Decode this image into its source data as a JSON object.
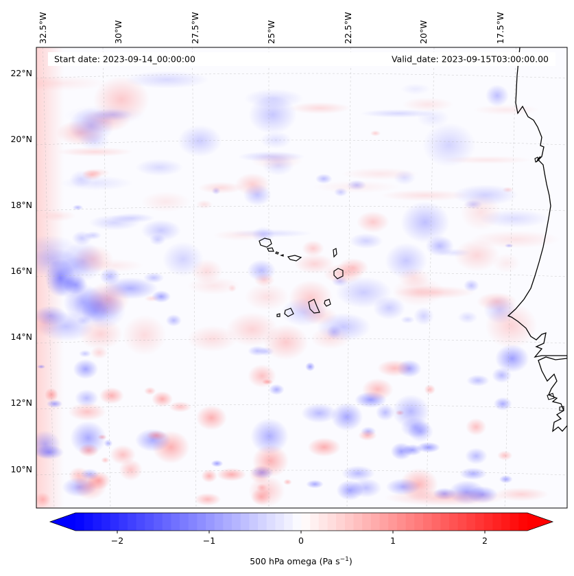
{
  "map": {
    "start_date_text": "Start date: 2023-09-14_00:00:00",
    "valid_date_text": "Valid_date: 2023-09-15T03:00:00.00",
    "lon_labels": [
      "32.5°W",
      "30°W",
      "27.5°W",
      "25°W",
      "22.5°W",
      "20°W",
      "17.5°W"
    ],
    "lat_labels": [
      "22°N",
      "20°N",
      "18°N",
      "16°N",
      "14°N",
      "12°N",
      "10°N"
    ],
    "variable": "500 hPa omega",
    "colormap": "bwr",
    "grid": true
  },
  "colorbar": {
    "label": "500 hPa omega (Pa s",
    "label_exponent": "−1",
    "label_close": ")",
    "ticks": [
      "−2",
      "−1",
      "0",
      "1",
      "2"
    ],
    "tick_values": [
      -2,
      -1,
      0,
      1,
      2
    ],
    "range": [
      -2.6,
      2.6
    ],
    "extend": "both"
  },
  "colors": {
    "neg": "#0000ff",
    "pos": "#ff0000",
    "neutral": "#ffffff",
    "grid": "#b0b0b0",
    "coast": "#000000"
  }
}
